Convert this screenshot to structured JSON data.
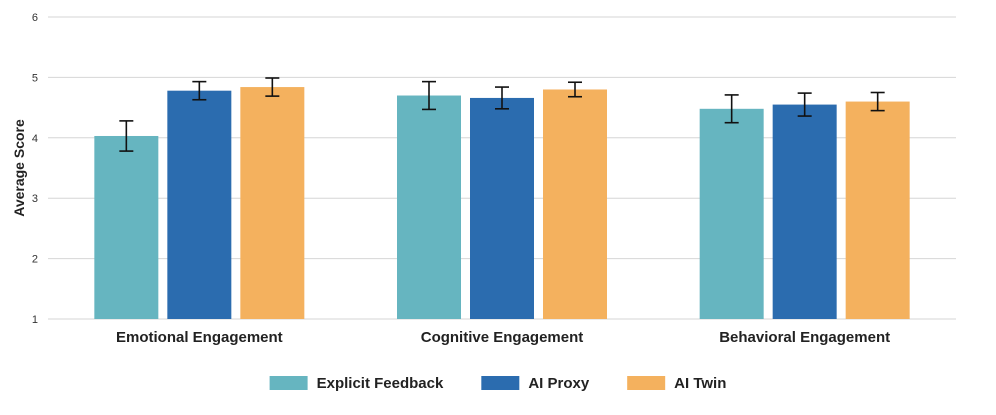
{
  "chart_data": {
    "type": "bar",
    "title": "",
    "xlabel": "",
    "ylabel": "Average Score",
    "ylim": [
      1,
      6
    ],
    "yticks": [
      1,
      2,
      3,
      4,
      5,
      6
    ],
    "grid": true,
    "legend_position": "bottom-center",
    "categories": [
      "Emotional Engagement",
      "Cognitive Engagement",
      "Behavioral Engagement"
    ],
    "series": [
      {
        "name": "Explicit Feedback",
        "color": "#66B5C0",
        "values": [
          4.03,
          4.7,
          4.48
        ],
        "error": [
          0.25,
          0.23,
          0.23
        ]
      },
      {
        "name": "AI Proxy",
        "color": "#2B6CAF",
        "values": [
          4.78,
          4.66,
          4.55
        ],
        "error": [
          0.15,
          0.18,
          0.19
        ]
      },
      {
        "name": "AI Twin",
        "color": "#F4B15E",
        "values": [
          4.84,
          4.8,
          4.6
        ],
        "error": [
          0.15,
          0.12,
          0.15
        ]
      }
    ]
  }
}
